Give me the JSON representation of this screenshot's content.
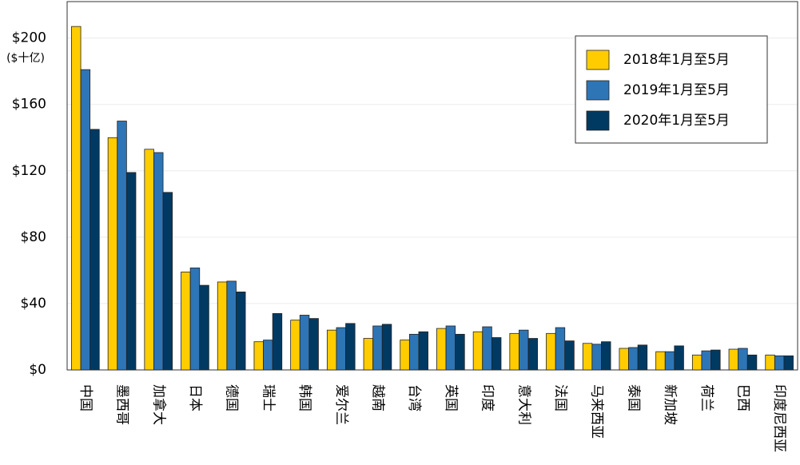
{
  "chart_data": {
    "type": "bar",
    "y_label": "($十亿)",
    "categories": [
      "中国",
      "墨西哥",
      "加拿大",
      "日本",
      "德国",
      "瑞士",
      "韩国",
      "爱尔兰",
      "越南",
      "台湾",
      "英国",
      "印度",
      "意大利",
      "法国",
      "马来西亚",
      "泰国",
      "新加坡",
      "荷兰",
      "巴西",
      "印度尼西亚"
    ],
    "series": [
      {
        "name": "2018年1月至5月",
        "color": "#ffcc00",
        "values": [
          207,
          140,
          133,
          59,
          53,
          17,
          30,
          24,
          19,
          18,
          25,
          23,
          22,
          22,
          16,
          13,
          11,
          9,
          12.5,
          9
        ]
      },
      {
        "name": "2019年1月至5月",
        "color": "#2e75b6",
        "values": [
          181,
          150,
          131,
          61.5,
          53.5,
          18,
          33,
          25.5,
          26.5,
          21.5,
          26.5,
          26,
          24,
          25.5,
          15.5,
          13.5,
          11,
          11.5,
          13,
          8.5
        ]
      },
      {
        "name": "2020年1月至5月",
        "color": "#003a63",
        "values": [
          145,
          119,
          107,
          51,
          47,
          34,
          31,
          28,
          27.5,
          23,
          21.5,
          19.5,
          19,
          17.5,
          17,
          15,
          14.5,
          12,
          9,
          8.5
        ]
      }
    ],
    "ylim": [
      0,
      222
    ],
    "yticks": [
      {
        "value": 0,
        "label": "$0"
      },
      {
        "value": 40,
        "label": "$40"
      },
      {
        "value": 80,
        "label": "$80"
      },
      {
        "value": 120,
        "label": "$120"
      },
      {
        "value": 160,
        "label": "$160"
      },
      {
        "value": 200,
        "label": "$200"
      }
    ],
    "grid": true,
    "legend": "upper right"
  }
}
